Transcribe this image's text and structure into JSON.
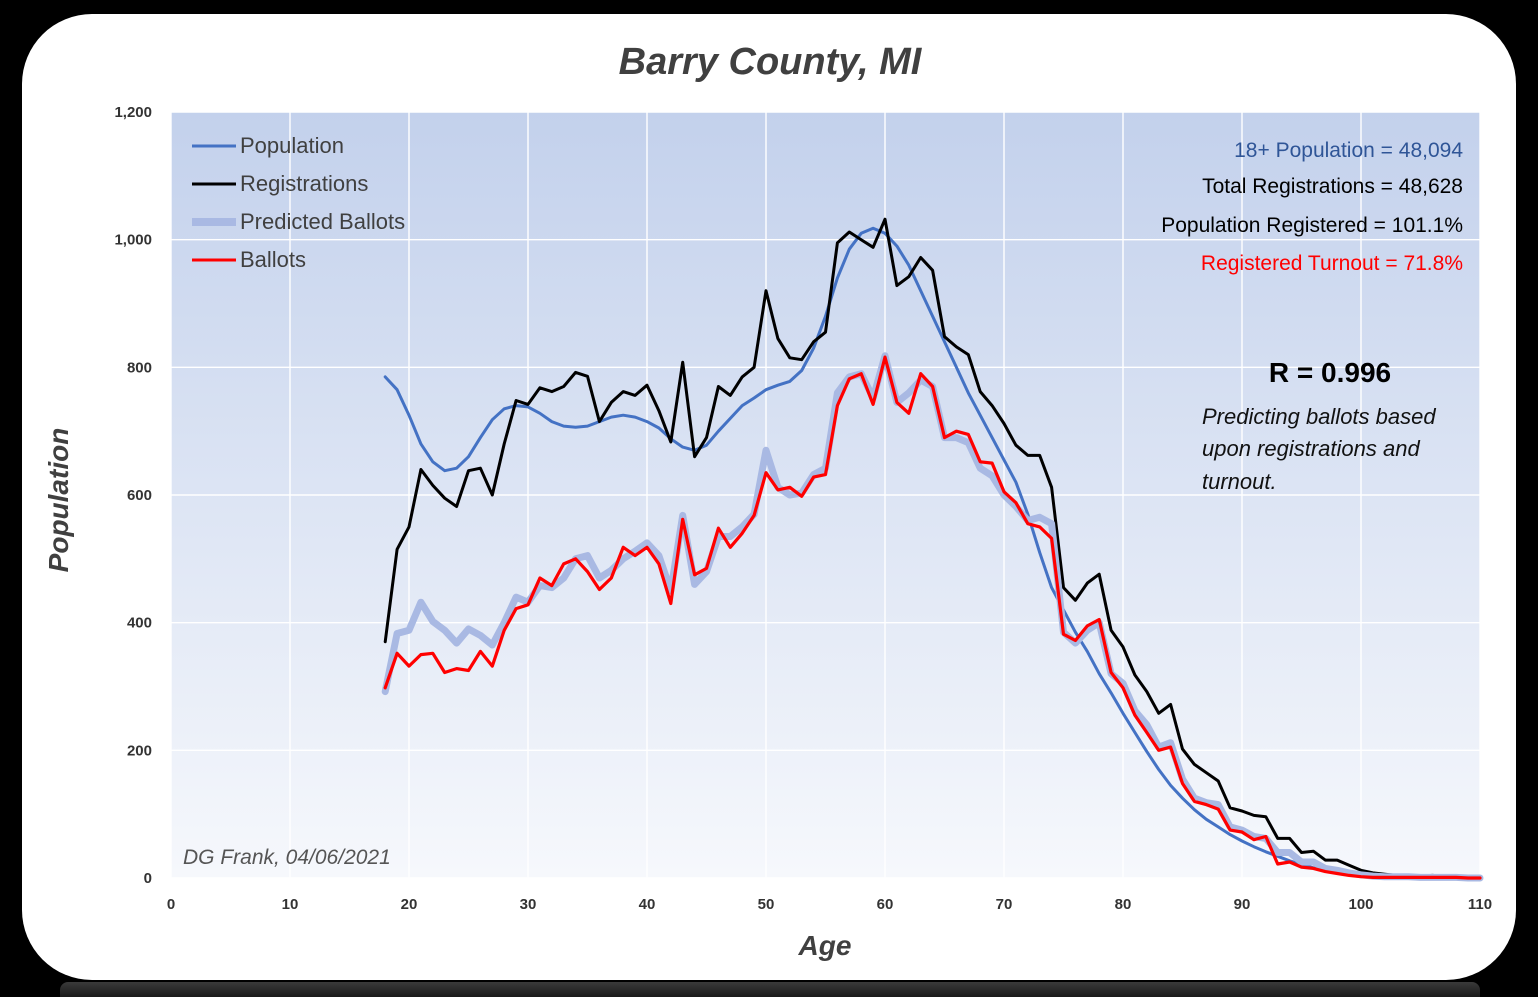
{
  "chart_data": {
    "type": "line",
    "title": "Barry County, MI",
    "xlabel": "Age",
    "ylabel": "Population",
    "xlim": [
      0,
      110
    ],
    "ylim": [
      0,
      1200
    ],
    "x_ticks": [
      "0",
      "10",
      "20",
      "30",
      "40",
      "50",
      "60",
      "70",
      "80",
      "90",
      "100",
      "110"
    ],
    "y_ticks": [
      "0",
      "200",
      "400",
      "600",
      "800",
      "1,000",
      "1,200"
    ],
    "grid": true,
    "legend_position": "top-left",
    "stats": {
      "population": "18+ Population = 48,094",
      "registrations": "Total Registrations = 48,628",
      "registered": "Population Registered = 101.1%",
      "turnout": "Registered Turnout = 71.8%"
    },
    "r_label": "R = 0.996",
    "note_lines": [
      "Predicting ballots based",
      "upon registrations and",
      "turnout."
    ],
    "credit": "DG Frank, 04/06/2021",
    "colors": {
      "population": "#4472C4",
      "registrations": "#000000",
      "predicted": "#A9B9E3",
      "ballots": "#FF0000",
      "stat_population": "#2F5597",
      "stat_turnout": "#FF0000",
      "plot_bg_top": "#C3D1EC",
      "plot_bg_bottom": "#F6F8FC"
    },
    "series": [
      {
        "name": "Population",
        "x": [
          18,
          19,
          20,
          21,
          22,
          23,
          24,
          25,
          26,
          27,
          28,
          29,
          30,
          31,
          32,
          33,
          34,
          35,
          36,
          37,
          38,
          39,
          40,
          41,
          42,
          43,
          44,
          45,
          46,
          47,
          48,
          49,
          50,
          51,
          52,
          53,
          54,
          55,
          56,
          57,
          58,
          59,
          60,
          61,
          62,
          63,
          64,
          65,
          66,
          67,
          68,
          69,
          70,
          71,
          72,
          73,
          74,
          75,
          76,
          77,
          78,
          79,
          80,
          81,
          82,
          83,
          84,
          85,
          86,
          87,
          88,
          89,
          90,
          91,
          92,
          93,
          94,
          95,
          96,
          97,
          98,
          99,
          100,
          101,
          102,
          103,
          104,
          105,
          106,
          107,
          108,
          109,
          110
        ],
        "values": [
          785,
          765,
          725,
          680,
          652,
          638,
          642,
          660,
          690,
          718,
          735,
          740,
          738,
          728,
          715,
          708,
          706,
          708,
          715,
          722,
          725,
          722,
          715,
          705,
          688,
          675,
          670,
          678,
          700,
          720,
          740,
          752,
          765,
          772,
          778,
          795,
          830,
          880,
          940,
          985,
          1010,
          1018,
          1010,
          990,
          960,
          920,
          880,
          840,
          800,
          760,
          725,
          690,
          655,
          620,
          570,
          510,
          455,
          420,
          385,
          355,
          320,
          290,
          258,
          228,
          198,
          170,
          145,
          125,
          107,
          92,
          80,
          68,
          58,
          49,
          41,
          34,
          27,
          21,
          16,
          12,
          9,
          6,
          4,
          3,
          2,
          1,
          1,
          1,
          0,
          0,
          0,
          0,
          0
        ]
      },
      {
        "name": "Registrations",
        "x": [
          18,
          19,
          20,
          21,
          22,
          23,
          24,
          25,
          26,
          27,
          28,
          29,
          30,
          31,
          32,
          33,
          34,
          35,
          36,
          37,
          38,
          39,
          40,
          41,
          42,
          43,
          44,
          45,
          46,
          47,
          48,
          49,
          50,
          51,
          52,
          53,
          54,
          55,
          56,
          57,
          58,
          59,
          60,
          61,
          62,
          63,
          64,
          65,
          66,
          67,
          68,
          69,
          70,
          71,
          72,
          73,
          74,
          75,
          76,
          77,
          78,
          79,
          80,
          81,
          82,
          83,
          84,
          85,
          86,
          87,
          88,
          89,
          90,
          91,
          92,
          93,
          94,
          95,
          96,
          97,
          98,
          99,
          100,
          101,
          102,
          103,
          104,
          105,
          106,
          107,
          108,
          109,
          110
        ],
        "values": [
          370,
          515,
          550,
          640,
          615,
          595,
          582,
          638,
          642,
          600,
          680,
          748,
          742,
          768,
          762,
          770,
          792,
          786,
          715,
          745,
          762,
          756,
          772,
          732,
          683,
          808,
          660,
          690,
          770,
          756,
          785,
          800,
          920,
          845,
          815,
          812,
          840,
          855,
          995,
          1012,
          1000,
          988,
          1032,
          928,
          942,
          972,
          952,
          848,
          832,
          820,
          762,
          740,
          712,
          678,
          662,
          662,
          612,
          455,
          435,
          462,
          476,
          388,
          362,
          318,
          292,
          258,
          272,
          202,
          178,
          165,
          152,
          110,
          105,
          98,
          96,
          62,
          62,
          40,
          42,
          28,
          28,
          20,
          12,
          8,
          6,
          4,
          4,
          3,
          4,
          3,
          1,
          1,
          1
        ]
      },
      {
        "name": "Predicted Ballots",
        "x": [
          18,
          19,
          20,
          21,
          22,
          23,
          24,
          25,
          26,
          27,
          28,
          29,
          30,
          31,
          32,
          33,
          34,
          35,
          36,
          37,
          38,
          39,
          40,
          41,
          42,
          43,
          44,
          45,
          46,
          47,
          48,
          49,
          50,
          51,
          52,
          53,
          54,
          55,
          56,
          57,
          58,
          59,
          60,
          61,
          62,
          63,
          64,
          65,
          66,
          67,
          68,
          69,
          70,
          71,
          72,
          73,
          74,
          75,
          76,
          77,
          78,
          79,
          80,
          81,
          82,
          83,
          84,
          85,
          86,
          87,
          88,
          89,
          90,
          91,
          92,
          93,
          94,
          95,
          96,
          97,
          98,
          99,
          100,
          101,
          102,
          103,
          104,
          105,
          106,
          107,
          108,
          109,
          110
        ],
        "values": [
          292,
          383,
          388,
          432,
          402,
          388,
          368,
          390,
          380,
          365,
          400,
          440,
          432,
          458,
          455,
          470,
          500,
          505,
          470,
          482,
          500,
          512,
          525,
          505,
          450,
          568,
          460,
          480,
          535,
          535,
          550,
          570,
          670,
          612,
          600,
          603,
          632,
          642,
          760,
          785,
          790,
          752,
          818,
          745,
          760,
          780,
          770,
          690,
          690,
          682,
          642,
          630,
          600,
          582,
          560,
          565,
          555,
          385,
          368,
          388,
          400,
          320,
          305,
          262,
          240,
          205,
          212,
          155,
          125,
          118,
          115,
          80,
          75,
          65,
          62,
          40,
          40,
          25,
          25,
          15,
          12,
          8,
          5,
          3,
          2,
          2,
          2,
          1,
          1,
          1,
          1,
          0,
          0
        ]
      },
      {
        "name": "Ballots",
        "x": [
          18,
          19,
          20,
          21,
          22,
          23,
          24,
          25,
          26,
          27,
          28,
          29,
          30,
          31,
          32,
          33,
          34,
          35,
          36,
          37,
          38,
          39,
          40,
          41,
          42,
          43,
          44,
          45,
          46,
          47,
          48,
          49,
          50,
          51,
          52,
          53,
          54,
          55,
          56,
          57,
          58,
          59,
          60,
          61,
          62,
          63,
          64,
          65,
          66,
          67,
          68,
          69,
          70,
          71,
          72,
          73,
          74,
          75,
          76,
          77,
          78,
          79,
          80,
          81,
          82,
          83,
          84,
          85,
          86,
          87,
          88,
          89,
          90,
          91,
          92,
          93,
          94,
          95,
          96,
          97,
          98,
          99,
          100,
          101,
          102,
          103,
          104,
          105,
          106,
          107,
          108,
          109,
          110
        ],
        "values": [
          298,
          352,
          332,
          350,
          352,
          322,
          328,
          325,
          355,
          332,
          388,
          422,
          428,
          470,
          458,
          492,
          500,
          480,
          452,
          470,
          518,
          505,
          518,
          492,
          430,
          562,
          475,
          485,
          548,
          518,
          540,
          568,
          635,
          608,
          612,
          598,
          628,
          632,
          740,
          782,
          790,
          742,
          816,
          745,
          728,
          790,
          770,
          690,
          700,
          695,
          652,
          650,
          605,
          588,
          555,
          550,
          532,
          382,
          372,
          395,
          405,
          322,
          298,
          255,
          228,
          200,
          205,
          148,
          120,
          115,
          108,
          75,
          72,
          60,
          65,
          22,
          25,
          17,
          15,
          10,
          7,
          4,
          2,
          1,
          1,
          1,
          1,
          1,
          1,
          1,
          1,
          0,
          0
        ]
      }
    ]
  }
}
